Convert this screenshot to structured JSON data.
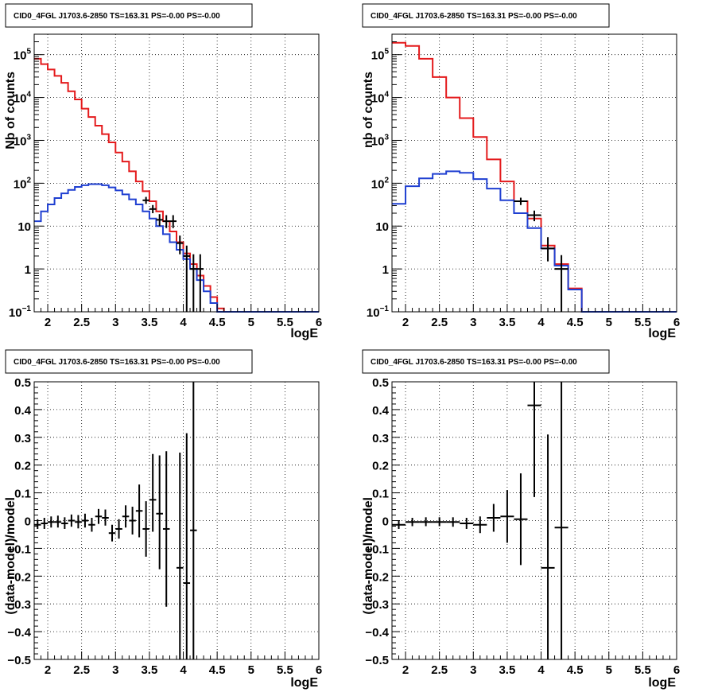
{
  "chart_data": [
    {
      "type": "step-histogram",
      "title": "CID0_4FGL J1703.6-2850 TS=163.31 PS=-0.00 PS=-0.00",
      "xlabel": "logE",
      "ylabel": "Nb of counts",
      "xlim": [
        1.8,
        6.0
      ],
      "ylim": [
        0.1,
        300000
      ],
      "yscale": "log",
      "grid": true,
      "xticks": [
        {
          "v": 2,
          "label": "2"
        },
        {
          "v": 2.5,
          "label": "2.5"
        },
        {
          "v": 3,
          "label": "3"
        },
        {
          "v": 3.5,
          "label": "3.5"
        },
        {
          "v": 4,
          "label": "4"
        },
        {
          "v": 4.5,
          "label": "4.5"
        },
        {
          "v": 5,
          "label": "5"
        },
        {
          "v": 5.5,
          "label": "5.5"
        },
        {
          "v": 6,
          "label": "6"
        }
      ],
      "yticks": [
        {
          "v": 0.1,
          "label": "10",
          "sup": "−1"
        },
        {
          "v": 1,
          "label": "1",
          "sup": ""
        },
        {
          "v": 10,
          "label": "10",
          "sup": ""
        },
        {
          "v": 100,
          "label": "10",
          "sup": "2"
        },
        {
          "v": 1000,
          "label": "10",
          "sup": "3"
        },
        {
          "v": 10000,
          "label": "10",
          "sup": "4"
        },
        {
          "v": 100000,
          "label": "10",
          "sup": "5"
        }
      ],
      "bin_edges": [
        1.8,
        1.9,
        2.0,
        2.1,
        2.2,
        2.3,
        2.4,
        2.5,
        2.6,
        2.7,
        2.8,
        2.9,
        3.0,
        3.1,
        3.2,
        3.3,
        3.4,
        3.5,
        3.6,
        3.7,
        3.8,
        3.9,
        4.0,
        4.1,
        4.2,
        4.3,
        4.4,
        4.5,
        4.6,
        4.7,
        4.8,
        4.9,
        5.0,
        5.1,
        5.2,
        5.3,
        5.4,
        5.5,
        5.6,
        5.7,
        5.8,
        5.9,
        6.0
      ],
      "series": [
        {
          "color": "#e41a1c",
          "values": [
            80000,
            60000,
            45000,
            32000,
            22000,
            14000,
            9000,
            5500,
            3500,
            2200,
            1400,
            900,
            520,
            320,
            190,
            110,
            65,
            38,
            22,
            13,
            7.5,
            4.2,
            2.3,
            1.3,
            0.7,
            0.4,
            0.22,
            0.12,
            0.1,
            0.1,
            0.1,
            0.1,
            0.1,
            0.1,
            0.1,
            0.1,
            0.1,
            0.1,
            0.1,
            0.1,
            0.1,
            0.1
          ]
        },
        {
          "color": "#1f3fd1",
          "values": [
            13,
            22,
            32,
            45,
            58,
            70,
            82,
            90,
            95,
            95,
            90,
            80,
            68,
            55,
            42,
            32,
            22,
            15,
            10,
            6.5,
            4.2,
            2.8,
            1.7,
            1.0,
            0.55,
            0.3,
            0.16,
            0.1,
            0.1,
            0.1,
            0.1,
            0.1,
            0.1,
            0.1,
            0.1,
            0.1,
            0.1,
            0.1,
            0.1,
            0.1,
            0.1,
            0.1
          ]
        }
      ],
      "points": [
        {
          "x": 3.45,
          "y": 40,
          "ylo": 33,
          "yhi": 48,
          "xerr": 0.05
        },
        {
          "x": 3.55,
          "y": 25,
          "ylo": 20,
          "yhi": 31,
          "xerr": 0.05
        },
        {
          "x": 3.65,
          "y": 14,
          "ylo": 10,
          "yhi": 19,
          "xerr": 0.05
        },
        {
          "x": 3.75,
          "y": 13,
          "ylo": 9,
          "yhi": 18,
          "xerr": 0.05
        },
        {
          "x": 3.85,
          "y": 13,
          "ylo": 9,
          "yhi": 18,
          "xerr": 0.05
        },
        {
          "x": 3.95,
          "y": 4,
          "ylo": 2.2,
          "yhi": 6,
          "xerr": 0.05
        },
        {
          "x": 4.05,
          "y": 2,
          "ylo": 0.1,
          "yhi": 3.5,
          "xerr": 0.05
        },
        {
          "x": 4.15,
          "y": 1,
          "ylo": 0.1,
          "yhi": 2.2,
          "xerr": 0.05
        },
        {
          "x": 4.25,
          "y": 1,
          "ylo": 0.1,
          "yhi": 2.2,
          "xerr": 0.05
        }
      ]
    },
    {
      "type": "step-histogram",
      "title": "CID0_4FGL J1703.6-2850 TS=163.31 PS=-0.00 PS=-0.00",
      "xlabel": "logE",
      "ylabel": "nb of counts",
      "xlim": [
        1.8,
        6.0
      ],
      "ylim": [
        0.1,
        300000
      ],
      "yscale": "log",
      "grid": true,
      "xticks": [
        {
          "v": 2,
          "label": "2"
        },
        {
          "v": 2.5,
          "label": "2.5"
        },
        {
          "v": 3,
          "label": "3"
        },
        {
          "v": 3.5,
          "label": "3.5"
        },
        {
          "v": 4,
          "label": "4"
        },
        {
          "v": 4.5,
          "label": "4.5"
        },
        {
          "v": 5,
          "label": "5"
        },
        {
          "v": 5.5,
          "label": "5.5"
        },
        {
          "v": 6,
          "label": "6"
        }
      ],
      "yticks": [
        {
          "v": 0.1,
          "label": "10",
          "sup": "−1"
        },
        {
          "v": 1,
          "label": "1",
          "sup": ""
        },
        {
          "v": 10,
          "label": "10",
          "sup": ""
        },
        {
          "v": 100,
          "label": "10",
          "sup": "2"
        },
        {
          "v": 1000,
          "label": "10",
          "sup": "3"
        },
        {
          "v": 10000,
          "label": "10",
          "sup": "4"
        },
        {
          "v": 100000,
          "label": "10",
          "sup": "5"
        }
      ],
      "bin_edges": [
        1.8,
        2.0,
        2.2,
        2.4,
        2.6,
        2.8,
        3.0,
        3.2,
        3.4,
        3.6,
        3.8,
        4.0,
        4.2,
        4.4,
        4.6,
        4.8,
        5.0,
        5.2,
        5.4,
        5.6,
        5.8,
        6.0
      ],
      "series": [
        {
          "color": "#e41a1c",
          "values": [
            190000,
            160000,
            80000,
            30000,
            10000,
            3300,
            1200,
            360,
            110,
            38,
            15,
            3.5,
            1.3,
            0.35,
            0.1,
            0.1,
            0.1,
            0.1,
            0.1,
            0.1,
            0.1
          ]
        },
        {
          "color": "#1f3fd1",
          "values": [
            33,
            85,
            130,
            165,
            190,
            175,
            125,
            75,
            40,
            20,
            9,
            3,
            1.2,
            0.33,
            0.1,
            0.1,
            0.1,
            0.1,
            0.1,
            0.1,
            0.1
          ]
        }
      ],
      "points": [
        {
          "x": 3.7,
          "y": 38,
          "ylo": 31,
          "yhi": 46,
          "xerr": 0.1
        },
        {
          "x": 3.9,
          "y": 18,
          "ylo": 13,
          "yhi": 23,
          "xerr": 0.1
        },
        {
          "x": 4.1,
          "y": 3,
          "ylo": 1.5,
          "yhi": 5.5,
          "xerr": 0.1
        },
        {
          "x": 4.3,
          "y": 1,
          "ylo": 0.1,
          "yhi": 2.1,
          "xerr": 0.1
        }
      ]
    },
    {
      "type": "scatter-errorbar",
      "title": "CID0_4FGL J1703.6-2850 TS=163.31 PS=-0.00 PS=-0.00",
      "xlabel": "logE",
      "ylabel": "(data-model)/model",
      "xlim": [
        1.8,
        6.0
      ],
      "ylim": [
        -0.5,
        0.5
      ],
      "grid": true,
      "xticks": [
        {
          "v": 2,
          "label": "2"
        },
        {
          "v": 2.5,
          "label": "2.5"
        },
        {
          "v": 3,
          "label": "3"
        },
        {
          "v": 3.5,
          "label": "3.5"
        },
        {
          "v": 4,
          "label": "4"
        },
        {
          "v": 4.5,
          "label": "4.5"
        },
        {
          "v": 5,
          "label": "5"
        },
        {
          "v": 5.5,
          "label": "5.5"
        },
        {
          "v": 6,
          "label": "6"
        }
      ],
      "yticks": [
        {
          "v": -0.5,
          "label": "−0.5"
        },
        {
          "v": -0.4,
          "label": "−0.4"
        },
        {
          "v": -0.3,
          "label": "−0.3"
        },
        {
          "v": -0.2,
          "label": "−0.2"
        },
        {
          "v": -0.1,
          "label": "−0.1"
        },
        {
          "v": 0,
          "label": "0"
        },
        {
          "v": 0.1,
          "label": "0.1"
        },
        {
          "v": 0.2,
          "label": "0.2"
        },
        {
          "v": 0.3,
          "label": "0.3"
        },
        {
          "v": 0.4,
          "label": "0.4"
        },
        {
          "v": 0.5,
          "label": "0.5"
        }
      ],
      "points": [
        {
          "x": 1.85,
          "y": -0.015,
          "ylo": -0.03,
          "yhi": 0.005,
          "xerr": 0.05
        },
        {
          "x": 1.95,
          "y": -0.01,
          "ylo": -0.03,
          "yhi": 0.01,
          "xerr": 0.05
        },
        {
          "x": 2.05,
          "y": -0.005,
          "ylo": -0.025,
          "yhi": 0.015,
          "xerr": 0.05
        },
        {
          "x": 2.15,
          "y": -0.005,
          "ylo": -0.025,
          "yhi": 0.018,
          "xerr": 0.05
        },
        {
          "x": 2.25,
          "y": -0.01,
          "ylo": -0.03,
          "yhi": 0.012,
          "xerr": 0.05
        },
        {
          "x": 2.35,
          "y": 0.0,
          "ylo": -0.022,
          "yhi": 0.022,
          "xerr": 0.05
        },
        {
          "x": 2.45,
          "y": -0.005,
          "ylo": -0.028,
          "yhi": 0.02,
          "xerr": 0.05
        },
        {
          "x": 2.55,
          "y": 0.0,
          "ylo": -0.025,
          "yhi": 0.025,
          "xerr": 0.05
        },
        {
          "x": 2.65,
          "y": -0.015,
          "ylo": -0.04,
          "yhi": 0.01,
          "xerr": 0.05
        },
        {
          "x": 2.75,
          "y": 0.015,
          "ylo": -0.012,
          "yhi": 0.042,
          "xerr": 0.05
        },
        {
          "x": 2.85,
          "y": 0.01,
          "ylo": -0.018,
          "yhi": 0.04,
          "xerr": 0.05
        },
        {
          "x": 2.95,
          "y": -0.045,
          "ylo": -0.075,
          "yhi": -0.015,
          "xerr": 0.05
        },
        {
          "x": 3.05,
          "y": -0.03,
          "ylo": -0.065,
          "yhi": 0.005,
          "xerr": 0.05
        },
        {
          "x": 3.15,
          "y": 0.015,
          "ylo": -0.025,
          "yhi": 0.055,
          "xerr": 0.05
        },
        {
          "x": 3.25,
          "y": 0.0,
          "ylo": -0.05,
          "yhi": 0.05,
          "xerr": 0.05
        },
        {
          "x": 3.35,
          "y": 0.035,
          "ylo": -0.06,
          "yhi": 0.13,
          "xerr": 0.05
        },
        {
          "x": 3.45,
          "y": -0.03,
          "ylo": -0.13,
          "yhi": 0.07,
          "xerr": 0.05
        },
        {
          "x": 3.55,
          "y": 0.075,
          "ylo": -0.04,
          "yhi": 0.24,
          "xerr": 0.05
        },
        {
          "x": 3.65,
          "y": 0.025,
          "ylo": -0.175,
          "yhi": 0.235,
          "xerr": 0.05
        },
        {
          "x": 3.75,
          "y": -0.03,
          "ylo": -0.31,
          "yhi": 0.25,
          "xerr": 0.05
        },
        {
          "x": 3.95,
          "y": -0.17,
          "ylo": -0.5,
          "yhi": 0.245,
          "xerr": 0.05
        },
        {
          "x": 4.05,
          "y": -0.225,
          "ylo": -0.5,
          "yhi": 0.315,
          "xerr": 0.05
        },
        {
          "x": 4.15,
          "y": -0.035,
          "ylo": -0.5,
          "yhi": 0.5,
          "xerr": 0.05
        }
      ]
    },
    {
      "type": "scatter-errorbar",
      "title": "CID0_4FGL J1703.6-2850 TS=163.31 PS=-0.00 PS=-0.00",
      "xlabel": "logE",
      "ylabel": "(data-model)/model",
      "xlim": [
        1.8,
        6.0
      ],
      "ylim": [
        -0.5,
        0.5
      ],
      "grid": true,
      "xticks": [
        {
          "v": 2,
          "label": "2"
        },
        {
          "v": 2.5,
          "label": "2.5"
        },
        {
          "v": 3,
          "label": "3"
        },
        {
          "v": 3.5,
          "label": "3.5"
        },
        {
          "v": 4,
          "label": "4"
        },
        {
          "v": 4.5,
          "label": "4.5"
        },
        {
          "v": 5,
          "label": "5"
        },
        {
          "v": 5.5,
          "label": "5.5"
        },
        {
          "v": 6,
          "label": "6"
        }
      ],
      "yticks": [
        {
          "v": -0.5,
          "label": "−0.5"
        },
        {
          "v": -0.4,
          "label": "−0.4"
        },
        {
          "v": -0.3,
          "label": "−0.3"
        },
        {
          "v": -0.2,
          "label": "−0.2"
        },
        {
          "v": -0.1,
          "label": "−0.1"
        },
        {
          "v": 0,
          "label": "0"
        },
        {
          "v": 0.1,
          "label": "0.1"
        },
        {
          "v": 0.2,
          "label": "0.2"
        },
        {
          "v": 0.3,
          "label": "0.3"
        },
        {
          "v": 0.4,
          "label": "0.4"
        },
        {
          "v": 0.5,
          "label": "0.5"
        }
      ],
      "points": [
        {
          "x": 1.9,
          "y": -0.015,
          "ylo": -0.03,
          "yhi": 0.0,
          "xerr": 0.1
        },
        {
          "x": 2.1,
          "y": -0.005,
          "ylo": -0.02,
          "yhi": 0.01,
          "xerr": 0.1
        },
        {
          "x": 2.3,
          "y": -0.005,
          "ylo": -0.02,
          "yhi": 0.012,
          "xerr": 0.1
        },
        {
          "x": 2.5,
          "y": -0.005,
          "ylo": -0.02,
          "yhi": 0.012,
          "xerr": 0.1
        },
        {
          "x": 2.7,
          "y": -0.005,
          "ylo": -0.022,
          "yhi": 0.012,
          "xerr": 0.1
        },
        {
          "x": 2.9,
          "y": -0.01,
          "ylo": -0.03,
          "yhi": 0.01,
          "xerr": 0.1
        },
        {
          "x": 3.1,
          "y": -0.015,
          "ylo": -0.045,
          "yhi": 0.015,
          "xerr": 0.1
        },
        {
          "x": 3.3,
          "y": 0.01,
          "ylo": -0.04,
          "yhi": 0.06,
          "xerr": 0.1
        },
        {
          "x": 3.5,
          "y": 0.015,
          "ylo": -0.08,
          "yhi": 0.11,
          "xerr": 0.1
        },
        {
          "x": 3.7,
          "y": 0.005,
          "ylo": -0.16,
          "yhi": 0.17,
          "xerr": 0.1
        },
        {
          "x": 3.9,
          "y": 0.415,
          "ylo": 0.085,
          "yhi": 0.5,
          "xerr": 0.1
        },
        {
          "x": 4.1,
          "y": -0.17,
          "ylo": -0.5,
          "yhi": 0.31,
          "xerr": 0.1
        },
        {
          "x": 4.3,
          "y": -0.025,
          "ylo": -0.5,
          "yhi": 0.5,
          "xerr": 0.1
        }
      ]
    }
  ]
}
